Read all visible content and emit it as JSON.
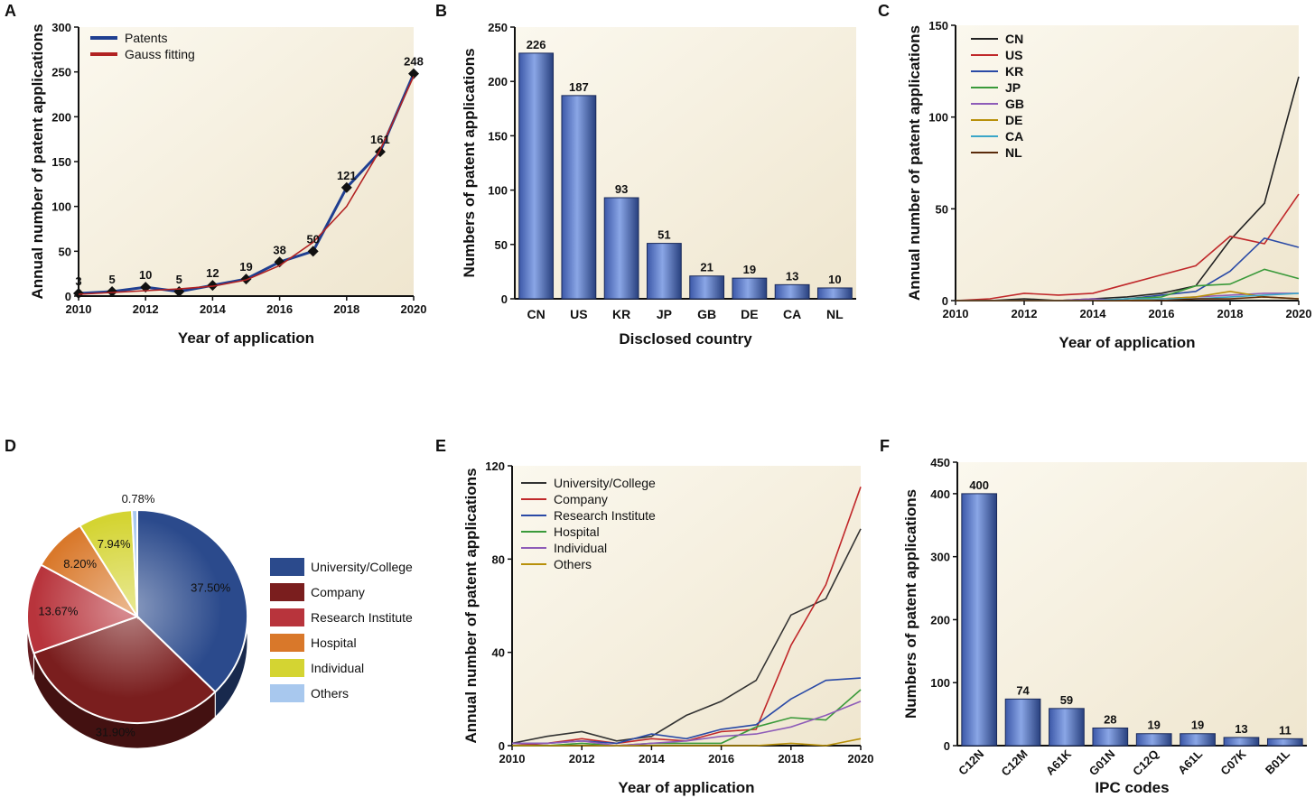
{
  "chart_data": [
    {
      "panel": "A",
      "type": "line",
      "xlabel": "Year of application",
      "ylabel": "Annual number of patent applications",
      "xlim": [
        2010,
        2020
      ],
      "ylim": [
        0,
        300
      ],
      "xticks": [
        2010,
        2012,
        2014,
        2016,
        2018,
        2020
      ],
      "yticks": [
        0,
        50,
        100,
        150,
        200,
        250,
        300
      ],
      "legend_position": "top-left",
      "series": [
        {
          "name": "Patents",
          "color": "#1f3f91",
          "markers": true,
          "x": [
            2010,
            2011,
            2012,
            2013,
            2014,
            2015,
            2016,
            2017,
            2018,
            2019,
            2020
          ],
          "values": [
            3,
            5,
            10,
            5,
            12,
            19,
            38,
            50,
            121,
            161,
            248
          ]
        },
        {
          "name": "Gauss fitting",
          "color": "#b22222",
          "markers": false,
          "x": [
            2010,
            2011,
            2012,
            2013,
            2014,
            2015,
            2016,
            2017,
            2018,
            2019,
            2020
          ],
          "values": [
            2,
            4,
            6,
            8,
            11,
            18,
            34,
            60,
            100,
            163,
            245
          ]
        }
      ],
      "data_labels": [
        "3",
        "5",
        "10",
        "5",
        "12",
        "19",
        "38",
        "50",
        "121",
        "161",
        "248"
      ]
    },
    {
      "panel": "B",
      "type": "bar",
      "xlabel": "Disclosed country",
      "ylabel": "Numbers of patent applications",
      "ylim": [
        0,
        250
      ],
      "yticks": [
        0,
        50,
        100,
        150,
        200,
        250
      ],
      "categories": [
        "CN",
        "US",
        "KR",
        "JP",
        "GB",
        "DE",
        "CA",
        "NL"
      ],
      "values": [
        226,
        187,
        93,
        51,
        21,
        19,
        13,
        10
      ],
      "data_labels": [
        "226",
        "187",
        "93",
        "51",
        "21",
        "19",
        "13",
        "10"
      ]
    },
    {
      "panel": "C",
      "type": "line",
      "xlabel": "Year of application",
      "ylabel": "Annual number of patent applications",
      "xlim": [
        2010,
        2020
      ],
      "ylim": [
        0,
        150
      ],
      "xticks": [
        2010,
        2012,
        2014,
        2016,
        2018,
        2020
      ],
      "yticks": [
        0,
        50,
        100,
        150
      ],
      "legend_position": "top-left",
      "x": [
        2010,
        2011,
        2012,
        2013,
        2014,
        2015,
        2016,
        2017,
        2018,
        2019,
        2020
      ],
      "series": [
        {
          "name": "CN",
          "color": "#222222",
          "values": [
            0,
            0,
            1,
            0,
            1,
            2,
            4,
            8,
            33,
            53,
            122
          ]
        },
        {
          "name": "US",
          "color": "#c0282a",
          "values": [
            0,
            1,
            4,
            3,
            4,
            9,
            14,
            19,
            35,
            31,
            58
          ]
        },
        {
          "name": "KR",
          "color": "#2a4aa6",
          "values": [
            0,
            0,
            0,
            0,
            0,
            1,
            3,
            5,
            16,
            34,
            29
          ]
        },
        {
          "name": "JP",
          "color": "#3a9a3a",
          "values": [
            0,
            0,
            0,
            0,
            0,
            1,
            2,
            8,
            9,
            17,
            12
          ]
        },
        {
          "name": "GB",
          "color": "#8e5cb8",
          "values": [
            0,
            0,
            0,
            0,
            1,
            0,
            1,
            2,
            3,
            4,
            4
          ]
        },
        {
          "name": "DE",
          "color": "#b8900a",
          "values": [
            0,
            0,
            0,
            0,
            0,
            0,
            1,
            2,
            5,
            2,
            1
          ]
        },
        {
          "name": "CA",
          "color": "#3aa6c8",
          "values": [
            0,
            0,
            0,
            0,
            0,
            1,
            1,
            1,
            2,
            3,
            4
          ]
        },
        {
          "name": "NL",
          "color": "#5a2a0a",
          "values": [
            0,
            0,
            0,
            0,
            0,
            0,
            0,
            1,
            1,
            2,
            1
          ]
        }
      ]
    },
    {
      "panel": "D",
      "type": "pie",
      "categories": [
        "University/College",
        "Company",
        "Research Institute",
        "Hospital",
        "Individual",
        "Others"
      ],
      "values": [
        37.5,
        31.9,
        13.67,
        8.2,
        7.94,
        0.78
      ],
      "value_labels": [
        "37.50%",
        "31.90%",
        "13.67%",
        "8.20%",
        "7.94%",
        "0.78%"
      ],
      "colors": [
        "#2b4a8c",
        "#7a1e1e",
        "#b8343c",
        "#d9782a",
        "#d4d432",
        "#a8c8ee"
      ],
      "legend_position": "right"
    },
    {
      "panel": "E",
      "type": "line",
      "xlabel": "Year of application",
      "ylabel": "Annual number of patent applications",
      "xlim": [
        2010,
        2020
      ],
      "ylim": [
        0,
        120
      ],
      "xticks": [
        2010,
        2012,
        2014,
        2016,
        2018,
        2020
      ],
      "yticks": [
        0,
        40,
        80,
        120
      ],
      "legend_position": "top-left",
      "x": [
        2010,
        2011,
        2012,
        2013,
        2014,
        2015,
        2016,
        2017,
        2018,
        2019,
        2020
      ],
      "series": [
        {
          "name": "University/College",
          "color": "#333333",
          "values": [
            1,
            4,
            6,
            2,
            4,
            13,
            19,
            28,
            56,
            63,
            93
          ]
        },
        {
          "name": "Company",
          "color": "#c0282a",
          "values": [
            0,
            1,
            3,
            1,
            3,
            2,
            6,
            7,
            43,
            69,
            111
          ]
        },
        {
          "name": "Research Institute",
          "color": "#2a4aa6",
          "values": [
            1,
            1,
            2,
            1,
            5,
            3,
            7,
            9,
            20,
            28,
            29
          ]
        },
        {
          "name": "Hospital",
          "color": "#3a9a3a",
          "values": [
            0,
            0,
            1,
            0,
            1,
            1,
            1,
            8,
            12,
            11,
            24
          ]
        },
        {
          "name": "Individual",
          "color": "#8e5cb8",
          "values": [
            1,
            1,
            2,
            0,
            1,
            2,
            4,
            5,
            8,
            13,
            19
          ]
        },
        {
          "name": "Others",
          "color": "#b8900a",
          "values": [
            0,
            0,
            0,
            0,
            0,
            0,
            0,
            0,
            1,
            0,
            3
          ]
        }
      ]
    },
    {
      "panel": "F",
      "type": "bar",
      "xlabel": "IPC codes",
      "ylabel": "Numbers of patent applications",
      "ylim": [
        0,
        450
      ],
      "yticks": [
        0,
        100,
        200,
        300,
        400,
        450
      ],
      "categories": [
        "C12N",
        "C12M",
        "A61K",
        "G01N",
        "C12Q",
        "A61L",
        "C07K",
        "B01L"
      ],
      "values": [
        400,
        74,
        59,
        28,
        19,
        19,
        13,
        11
      ],
      "data_labels": [
        "400",
        "74",
        "59",
        "28",
        "19",
        "19",
        "13",
        "11"
      ]
    }
  ]
}
